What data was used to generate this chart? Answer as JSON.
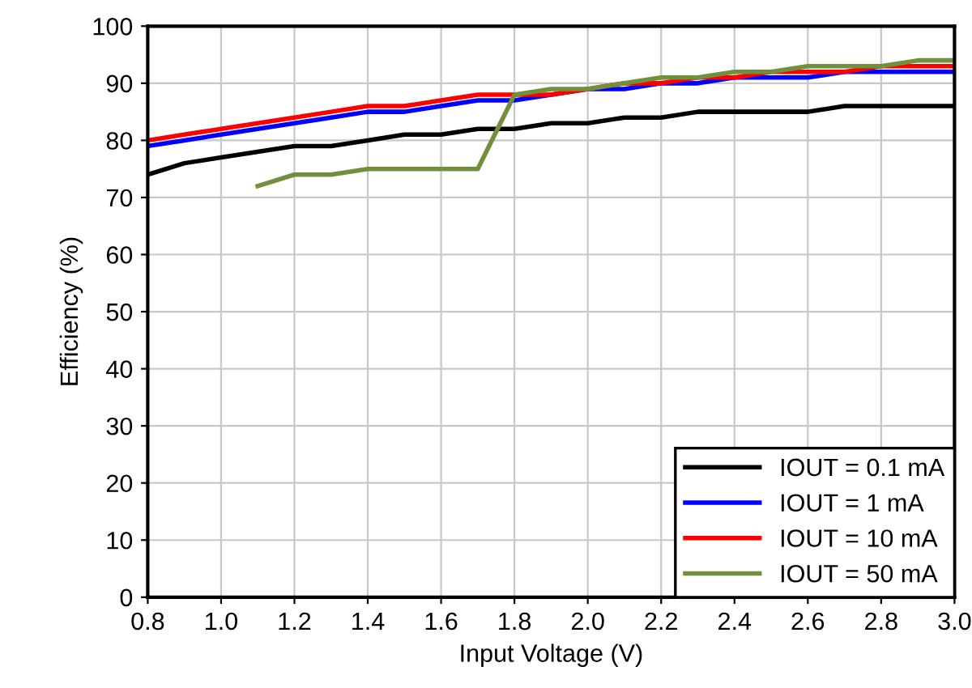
{
  "chart_data": {
    "type": "line",
    "xlabel": "Input Voltage (V)",
    "ylabel": "Efficiency (%)",
    "xlim": [
      0.8,
      3.0
    ],
    "ylim": [
      0,
      100
    ],
    "xticks": [
      {
        "value": 0.8,
        "label": "0.8"
      },
      {
        "value": 1.0,
        "label": "1.0"
      },
      {
        "value": 1.2,
        "label": "1.2"
      },
      {
        "value": 1.4,
        "label": "1.4"
      },
      {
        "value": 1.6,
        "label": "1.6"
      },
      {
        "value": 1.8,
        "label": "1.8"
      },
      {
        "value": 2.0,
        "label": "2.0"
      },
      {
        "value": 2.2,
        "label": "2.2"
      },
      {
        "value": 2.4,
        "label": "2.4"
      },
      {
        "value": 2.6,
        "label": "2.6"
      },
      {
        "value": 2.8,
        "label": "2.8"
      },
      {
        "value": 3.0,
        "label": "3.0"
      }
    ],
    "yticks": [
      0,
      10,
      20,
      30,
      40,
      50,
      60,
      70,
      80,
      90,
      100
    ],
    "grid": true,
    "legend": "bottom right",
    "marker": "none",
    "line_style": "solid",
    "series": [
      {
        "name": "IOUT = 0.1 mA",
        "color": "#000000",
        "x": [
          0.8,
          0.9,
          1.0,
          1.1,
          1.2,
          1.3,
          1.4,
          1.5,
          1.6,
          1.7,
          1.8,
          1.9,
          2.0,
          2.1,
          2.2,
          2.3,
          2.4,
          2.5,
          2.6,
          2.7,
          2.8,
          2.9,
          3.0
        ],
        "values": [
          74,
          76,
          77,
          78,
          79,
          79,
          80,
          81,
          81,
          82,
          82,
          83,
          83,
          84,
          84,
          85,
          85,
          85,
          85,
          86,
          86,
          86,
          86
        ]
      },
      {
        "name": "IOUT = 1 mA",
        "color": "#0000ff",
        "x": [
          0.8,
          0.9,
          1.0,
          1.1,
          1.2,
          1.3,
          1.4,
          1.5,
          1.6,
          1.7,
          1.8,
          1.9,
          2.0,
          2.1,
          2.2,
          2.3,
          2.4,
          2.5,
          2.6,
          2.7,
          2.8,
          2.9,
          3.0
        ],
        "values": [
          79,
          80,
          81,
          82,
          83,
          84,
          85,
          85,
          86,
          87,
          87,
          88,
          89,
          89,
          90,
          90,
          91,
          91,
          91,
          92,
          92,
          92,
          92
        ]
      },
      {
        "name": "IOUT = 10 mA",
        "color": "#ff0000",
        "x": [
          0.8,
          0.9,
          1.0,
          1.1,
          1.2,
          1.3,
          1.4,
          1.5,
          1.6,
          1.7,
          1.8,
          1.9,
          2.0,
          2.1,
          2.2,
          2.3,
          2.4,
          2.5,
          2.6,
          2.7,
          2.8,
          2.9,
          3.0
        ],
        "values": [
          80,
          81,
          82,
          83,
          84,
          85,
          86,
          86,
          87,
          88,
          88,
          88,
          89,
          90,
          90,
          91,
          91,
          92,
          92,
          92,
          93,
          93,
          93
        ]
      },
      {
        "name": "IOUT = 50 mA",
        "color": "#70903c",
        "x": [
          1.1,
          1.2,
          1.3,
          1.4,
          1.5,
          1.6,
          1.7,
          1.8,
          1.9,
          2.0,
          2.1,
          2.2,
          2.3,
          2.4,
          2.5,
          2.6,
          2.7,
          2.8,
          2.9,
          3.0
        ],
        "values": [
          72,
          74,
          74,
          75,
          75,
          75,
          75,
          88,
          89,
          89,
          90,
          91,
          91,
          92,
          92,
          93,
          93,
          93,
          94,
          94
        ]
      }
    ]
  }
}
